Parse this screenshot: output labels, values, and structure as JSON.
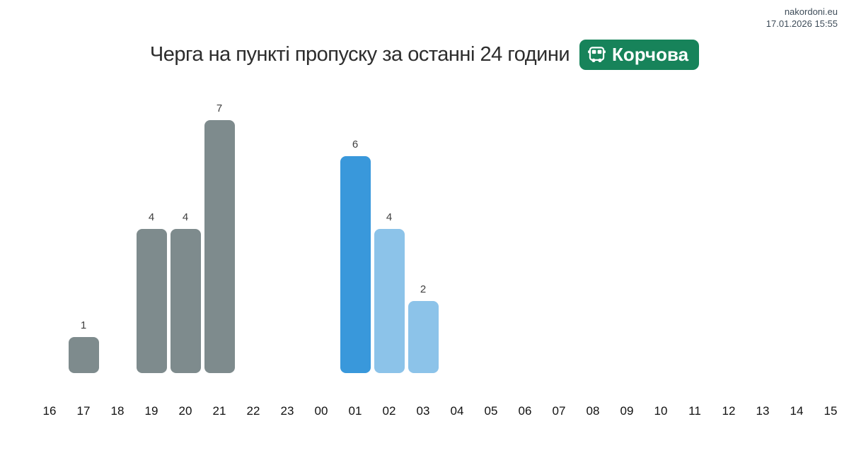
{
  "header": {
    "site": "nakordoni.eu",
    "timestamp": "17.01.2026 15:55",
    "badge_label": "Корчова",
    "badge_color": "#17835a"
  },
  "chart_data": {
    "type": "bar",
    "title": "Черга на пункті пропуску за останні 24 години",
    "categories": [
      "16",
      "17",
      "18",
      "19",
      "20",
      "21",
      "22",
      "23",
      "00",
      "01",
      "02",
      "03",
      "04",
      "05",
      "06",
      "07",
      "08",
      "09",
      "10",
      "11",
      "12",
      "13",
      "14",
      "15"
    ],
    "values": [
      0,
      1,
      0,
      4,
      4,
      7,
      0,
      0,
      0,
      6,
      4,
      2,
      0,
      0,
      0,
      0,
      0,
      0,
      0,
      0,
      0,
      0,
      0,
      0
    ],
    "bar_color_keys": [
      "none",
      "gray",
      "none",
      "gray",
      "gray",
      "gray",
      "none",
      "none",
      "none",
      "blue_dark",
      "blue_light",
      "blue_light",
      "none",
      "none",
      "none",
      "none",
      "none",
      "none",
      "none",
      "none",
      "none",
      "none",
      "none",
      "none"
    ],
    "palette": {
      "gray": "#7e8b8d",
      "blue_dark": "#3998db",
      "blue_light": "#8cc3e9"
    },
    "xlabel": "",
    "ylabel": "",
    "ylim": [
      0,
      7.5
    ],
    "grid": false,
    "legend": false,
    "show_value_labels_on_nonzero_bars": true
  }
}
